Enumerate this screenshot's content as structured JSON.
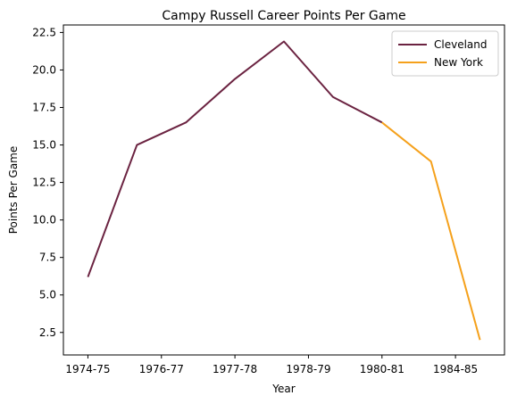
{
  "chart_data": {
    "type": "line",
    "title": "Campy Russell Career Points Per Game",
    "xlabel": "Year",
    "ylabel": "Points Per Game",
    "x_tick_labels": [
      "1974-75",
      "1976-77",
      "1977-78",
      "1978-79",
      "1980-81",
      "1984-85"
    ],
    "y_ticks": [
      2.5,
      5.0,
      7.5,
      10.0,
      12.5,
      15.0,
      17.5,
      20.0,
      22.5
    ],
    "series": [
      {
        "name": "Cleveland",
        "color": "#6b2341",
        "points": [
          {
            "x": 0,
            "y": 6.2
          },
          {
            "x": 1,
            "y": 15.0
          },
          {
            "x": 2,
            "y": 16.5
          },
          {
            "x": 3,
            "y": 19.4
          },
          {
            "x": 4,
            "y": 21.9
          },
          {
            "x": 5,
            "y": 18.2
          },
          {
            "x": 6,
            "y": 16.5
          }
        ]
      },
      {
        "name": "New York",
        "color": "#f5a11c",
        "points": [
          {
            "x": 6,
            "y": 16.5
          },
          {
            "x": 7,
            "y": 13.9
          },
          {
            "x": 8,
            "y": 2.0
          }
        ]
      }
    ],
    "xlim": [
      -0.5,
      8.5
    ],
    "ylim": [
      1.0,
      23.0
    ],
    "grid": false,
    "legend_position": "top-right"
  }
}
